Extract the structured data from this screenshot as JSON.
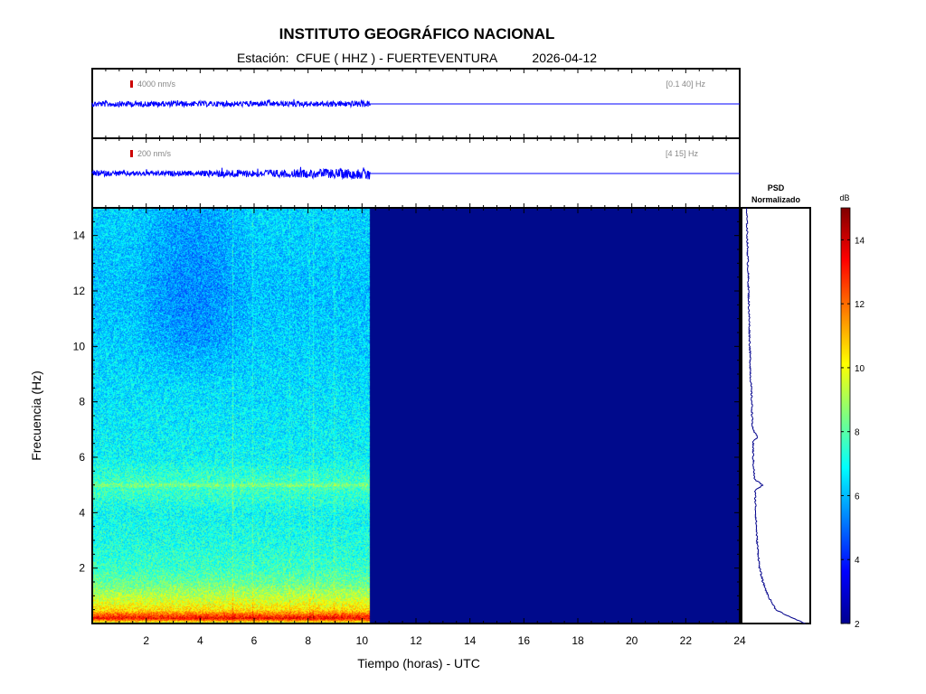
{
  "header": {
    "title": "INSTITUTO GEOGRÁFICO NACIONAL",
    "station_label": "Estación:",
    "station": "CFUE ( HHZ ) - FUERTEVENTURA",
    "date": "2026-04-12"
  },
  "colors": {
    "trace": "#0000ff",
    "psd_line": "#00008b",
    "scale_marker": "#cc0000",
    "empty_spectrogram": "#000a8c"
  },
  "chart_data": [
    {
      "type": "line",
      "name": "broadband-trace",
      "scale_label": "4000 nm/s",
      "filter_label": "[0.1 40] Hz",
      "xlim": [
        0,
        24
      ],
      "data_end_hour": 10.3,
      "amplitude_profile": {
        "x": [
          0,
          3,
          6,
          9,
          10.3
        ],
        "y": [
          0.18,
          0.17,
          0.17,
          0.18,
          0.2
        ]
      }
    },
    {
      "type": "line",
      "name": "filtered-trace",
      "scale_label": "200 nm/s",
      "filter_label": "[4 15] Hz",
      "xlim": [
        0,
        24
      ],
      "data_end_hour": 10.3,
      "amplitude_profile": {
        "x": [
          0,
          2,
          4,
          5,
          6,
          8,
          9,
          10,
          10.3
        ],
        "y": [
          0.18,
          0.15,
          0.16,
          0.26,
          0.22,
          0.26,
          0.3,
          0.34,
          0.5
        ]
      }
    },
    {
      "type": "heatmap",
      "name": "spectrogram",
      "xlabel": "Tiempo (horas) - UTC",
      "ylabel": "Frecuencia  (Hz)",
      "xlim": [
        0,
        24
      ],
      "ylim": [
        0,
        15
      ],
      "xticks": [
        2,
        4,
        6,
        8,
        10,
        12,
        14,
        16,
        18,
        20,
        22,
        24
      ],
      "yticks": [
        2,
        4,
        6,
        8,
        10,
        12,
        14
      ],
      "data_end_hour": 10.3,
      "clim_db": [
        2,
        15
      ],
      "colorbar_label": "dB",
      "colorbar_ticks": [
        2,
        4,
        6,
        8,
        10,
        12,
        14
      ],
      "level_profile_db": {
        "freq_hz": [
          0,
          0.2,
          0.5,
          1,
          1.5,
          2,
          3,
          4,
          5,
          6,
          8,
          10,
          12,
          14,
          15
        ],
        "db": [
          8.5,
          13.5,
          10.5,
          9.2,
          8.2,
          7.6,
          7.2,
          7.0,
          7.8,
          6.9,
          6.6,
          6.3,
          6.1,
          6.3,
          6.4
        ]
      },
      "spectral_line_hz": 5.0
    },
    {
      "type": "line",
      "name": "psd",
      "title": "PSD\nNormalizado",
      "curve": {
        "freq_hz": [
          0,
          0.2,
          0.5,
          1,
          1.5,
          2,
          3,
          4,
          4.8,
          5,
          5.2,
          6,
          6.6,
          6.7,
          7,
          8,
          9,
          10,
          11,
          12,
          13,
          14,
          15
        ],
        "level": [
          0.95,
          0.75,
          0.5,
          0.38,
          0.3,
          0.25,
          0.21,
          0.19,
          0.18,
          0.3,
          0.17,
          0.15,
          0.15,
          0.23,
          0.14,
          0.13,
          0.11,
          0.1,
          0.09,
          0.08,
          0.07,
          0.06,
          0.05
        ]
      }
    }
  ]
}
